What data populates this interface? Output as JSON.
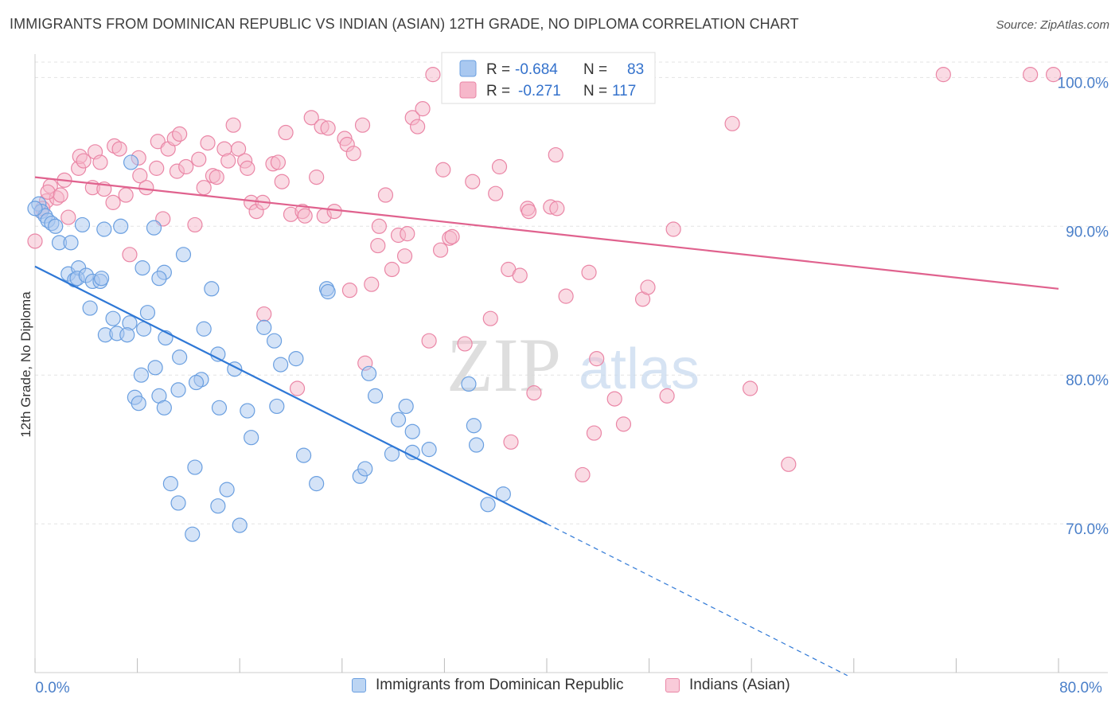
{
  "header": {
    "title": "IMMIGRANTS FROM DOMINICAN REPUBLIC VS INDIAN (ASIAN) 12TH GRADE, NO DIPLOMA CORRELATION CHART",
    "source": "Source: ZipAtlas.com"
  },
  "watermark": {
    "zip": "ZIP",
    "atlas": "atlas"
  },
  "colors": {
    "blue_fill": "#a9c8f0",
    "blue_stroke": "#6a9fe0",
    "blue_line": "#2f78d6",
    "pink_fill": "#f6b7ca",
    "pink_stroke": "#ea86a6",
    "pink_line": "#e0628e",
    "axis_text": "#4a7fc9",
    "grid": "#e3e3e3"
  },
  "stats_legend": [
    {
      "r_label": "R =",
      "r_value": "-0.684",
      "n_label": "N =",
      "n_value": "83",
      "color": "blue"
    },
    {
      "r_label": "R =",
      "r_value": "-0.271",
      "n_label": "N =",
      "n_value": "117",
      "color": "pink"
    }
  ],
  "chart_data": {
    "type": "scatter",
    "title": "IMMIGRANTS FROM DOMINICAN REPUBLIC VS INDIAN (ASIAN) 12TH GRADE, NO DIPLOMA CORRELATION CHART",
    "xlabel": "",
    "ylabel": "12th Grade, No Diploma",
    "xlim": [
      0,
      80
    ],
    "ylim": [
      60,
      102
    ],
    "x_tick_labels": [
      "0.0%",
      "80.0%"
    ],
    "y_ticks": [
      70,
      80,
      90,
      100
    ],
    "y_tick_labels": [
      "70.0%",
      "80.0%",
      "90.0%",
      "100.0%"
    ],
    "grid": true,
    "legend_position": "bottom",
    "series": [
      {
        "name": "Immigrants from Dominican Republic",
        "color": "blue",
        "trend": {
          "x": [
            0,
            40
          ],
          "y": [
            87.3,
            70.0
          ],
          "dashed_to": [
            63.5,
            59.8
          ]
        },
        "points": [
          [
            0.3,
            91.5
          ],
          [
            0.5,
            91.0
          ],
          [
            0.8,
            90.7
          ],
          [
            1.0,
            90.4
          ],
          [
            1.3,
            90.2
          ],
          [
            1.6,
            90.0
          ],
          [
            1.9,
            88.9
          ],
          [
            2.8,
            88.9
          ],
          [
            3.7,
            90.1
          ],
          [
            5.4,
            89.8
          ],
          [
            6.7,
            90.0
          ],
          [
            9.3,
            89.9
          ],
          [
            7.5,
            94.3
          ],
          [
            11.6,
            88.1
          ],
          [
            2.6,
            86.8
          ],
          [
            3.1,
            86.4
          ],
          [
            3.4,
            87.2
          ],
          [
            3.3,
            86.5
          ],
          [
            4.0,
            86.7
          ],
          [
            4.5,
            86.3
          ],
          [
            5.1,
            86.3
          ],
          [
            5.2,
            86.5
          ],
          [
            8.4,
            87.2
          ],
          [
            10.1,
            86.9
          ],
          [
            9.7,
            86.5
          ],
          [
            13.8,
            85.8
          ],
          [
            22.8,
            85.8
          ],
          [
            22.9,
            85.6
          ],
          [
            4.3,
            84.5
          ],
          [
            6.1,
            83.8
          ],
          [
            7.4,
            83.5
          ],
          [
            8.8,
            84.2
          ],
          [
            8.5,
            83.1
          ],
          [
            5.5,
            82.7
          ],
          [
            6.4,
            82.8
          ],
          [
            7.2,
            82.7
          ],
          [
            10.2,
            82.5
          ],
          [
            13.2,
            83.1
          ],
          [
            17.9,
            83.2
          ],
          [
            18.7,
            82.3
          ],
          [
            9.4,
            80.5
          ],
          [
            8.3,
            80.0
          ],
          [
            11.3,
            81.2
          ],
          [
            15.6,
            80.4
          ],
          [
            14.3,
            81.4
          ],
          [
            19.2,
            80.7
          ],
          [
            20.4,
            81.1
          ],
          [
            13.0,
            79.7
          ],
          [
            12.6,
            79.5
          ],
          [
            11.2,
            79.0
          ],
          [
            7.8,
            78.5
          ],
          [
            8.1,
            78.1
          ],
          [
            9.7,
            78.6
          ],
          [
            10.1,
            77.8
          ],
          [
            14.4,
            77.8
          ],
          [
            16.6,
            77.6
          ],
          [
            18.9,
            77.9
          ],
          [
            26.6,
            78.6
          ],
          [
            26.1,
            80.1
          ],
          [
            29.0,
            77.9
          ],
          [
            33.9,
            79.4
          ],
          [
            28.4,
            77.0
          ],
          [
            29.5,
            76.2
          ],
          [
            16.9,
            75.8
          ],
          [
            21.0,
            74.6
          ],
          [
            27.9,
            74.7
          ],
          [
            29.5,
            74.8
          ],
          [
            30.8,
            75.0
          ],
          [
            34.3,
            76.6
          ],
          [
            34.5,
            75.3
          ],
          [
            12.5,
            73.8
          ],
          [
            10.6,
            72.7
          ],
          [
            22.0,
            72.7
          ],
          [
            15.0,
            72.3
          ],
          [
            25.4,
            73.2
          ],
          [
            25.8,
            73.7
          ],
          [
            11.2,
            71.4
          ],
          [
            14.3,
            71.2
          ],
          [
            35.4,
            71.3
          ],
          [
            36.6,
            72.0
          ],
          [
            16.0,
            69.9
          ],
          [
            12.3,
            69.3
          ],
          [
            0.0,
            91.2
          ]
        ]
      },
      {
        "name": "Indians (Asian)",
        "color": "pink",
        "trend": {
          "x": [
            0,
            80
          ],
          "y": [
            93.3,
            85.8
          ]
        },
        "points": [
          [
            0.0,
            89.0
          ],
          [
            0.5,
            91.0
          ],
          [
            0.9,
            91.7
          ],
          [
            1.2,
            92.7
          ],
          [
            1.7,
            91.9
          ],
          [
            2.3,
            93.1
          ],
          [
            2.6,
            90.6
          ],
          [
            3.4,
            93.9
          ],
          [
            3.5,
            94.7
          ],
          [
            3.8,
            94.4
          ],
          [
            4.5,
            92.6
          ],
          [
            4.7,
            95.0
          ],
          [
            5.1,
            94.3
          ],
          [
            5.4,
            92.5
          ],
          [
            6.1,
            91.6
          ],
          [
            6.2,
            95.4
          ],
          [
            6.6,
            95.2
          ],
          [
            7.1,
            92.1
          ],
          [
            7.4,
            88.1
          ],
          [
            8.1,
            94.6
          ],
          [
            8.2,
            93.4
          ],
          [
            8.7,
            92.6
          ],
          [
            9.5,
            93.9
          ],
          [
            9.6,
            95.7
          ],
          [
            10.0,
            90.5
          ],
          [
            10.4,
            95.2
          ],
          [
            10.9,
            95.9
          ],
          [
            11.1,
            93.7
          ],
          [
            11.3,
            96.2
          ],
          [
            11.8,
            94.0
          ],
          [
            12.5,
            90.1
          ],
          [
            12.8,
            94.5
          ],
          [
            13.2,
            92.6
          ],
          [
            13.5,
            95.6
          ],
          [
            13.9,
            93.4
          ],
          [
            14.2,
            93.3
          ],
          [
            14.8,
            95.2
          ],
          [
            15.1,
            94.4
          ],
          [
            15.5,
            96.8
          ],
          [
            15.9,
            95.2
          ],
          [
            16.4,
            94.4
          ],
          [
            16.6,
            93.9
          ],
          [
            16.9,
            91.6
          ],
          [
            17.3,
            91.0
          ],
          [
            17.8,
            91.6
          ],
          [
            17.9,
            84.1
          ],
          [
            18.6,
            94.2
          ],
          [
            19.0,
            94.3
          ],
          [
            19.3,
            93.0
          ],
          [
            19.6,
            96.3
          ],
          [
            20.0,
            90.8
          ],
          [
            20.5,
            79.1
          ],
          [
            20.9,
            91.0
          ],
          [
            21.1,
            90.7
          ],
          [
            21.6,
            97.3
          ],
          [
            22.0,
            93.3
          ],
          [
            22.4,
            96.7
          ],
          [
            22.9,
            96.6
          ],
          [
            22.6,
            90.7
          ],
          [
            23.4,
            91.0
          ],
          [
            24.2,
            95.9
          ],
          [
            24.4,
            95.5
          ],
          [
            24.6,
            85.7
          ],
          [
            24.9,
            94.9
          ],
          [
            25.6,
            96.8
          ],
          [
            25.8,
            80.8
          ],
          [
            26.3,
            86.1
          ],
          [
            26.8,
            88.7
          ],
          [
            26.9,
            90.0
          ],
          [
            27.4,
            92.1
          ],
          [
            27.9,
            87.1
          ],
          [
            28.4,
            89.4
          ],
          [
            28.9,
            88.0
          ],
          [
            29.1,
            89.5
          ],
          [
            29.5,
            97.3
          ],
          [
            29.9,
            96.7
          ],
          [
            30.3,
            97.9
          ],
          [
            30.8,
            82.3
          ],
          [
            31.1,
            100.2
          ],
          [
            31.7,
            88.4
          ],
          [
            31.9,
            93.8
          ],
          [
            32.4,
            89.2
          ],
          [
            32.6,
            89.3
          ],
          [
            33.6,
            82.1
          ],
          [
            34.2,
            93.0
          ],
          [
            35.6,
            83.8
          ],
          [
            36.0,
            92.2
          ],
          [
            36.3,
            94.0
          ],
          [
            37.0,
            87.1
          ],
          [
            37.2,
            75.5
          ],
          [
            37.9,
            86.7
          ],
          [
            38.5,
            91.2
          ],
          [
            38.6,
            91.0
          ],
          [
            39.0,
            78.8
          ],
          [
            40.3,
            91.3
          ],
          [
            40.8,
            91.2
          ],
          [
            40.7,
            94.8
          ],
          [
            41.5,
            85.3
          ],
          [
            42.8,
            73.3
          ],
          [
            43.3,
            86.9
          ],
          [
            43.7,
            76.1
          ],
          [
            43.9,
            81.1
          ],
          [
            45.3,
            78.4
          ],
          [
            46.0,
            76.7
          ],
          [
            47.5,
            85.1
          ],
          [
            47.9,
            85.9
          ],
          [
            49.4,
            78.6
          ],
          [
            49.9,
            89.8
          ],
          [
            54.5,
            96.9
          ],
          [
            55.9,
            79.1
          ],
          [
            58.9,
            74.0
          ],
          [
            71.0,
            100.2
          ],
          [
            77.8,
            100.2
          ],
          [
            79.6,
            100.2
          ],
          [
            0.6,
            91.2
          ],
          [
            1.0,
            92.3
          ],
          [
            2.0,
            92.1
          ]
        ]
      }
    ]
  }
}
